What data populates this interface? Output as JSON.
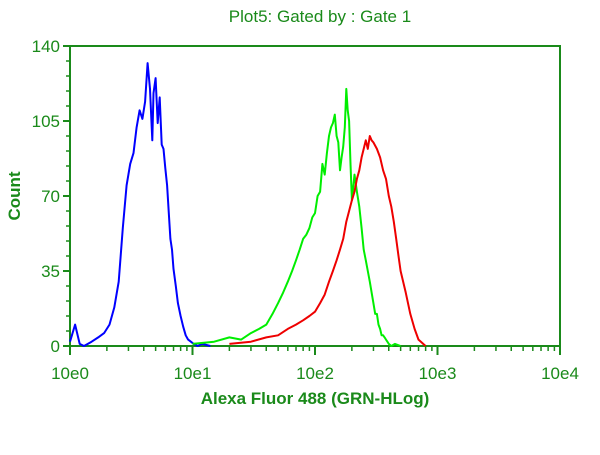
{
  "chart_data": {
    "type": "line",
    "title": "Plot5:  Gated by : Gate 1",
    "xlabel": "Alexa Fluor 488 (GRN-HLog)",
    "ylabel": "Count",
    "x_scale": "log",
    "xlim": [
      1,
      10000
    ],
    "ylim": [
      0,
      140
    ],
    "x_ticks": [
      {
        "value": 1,
        "label": "10e0"
      },
      {
        "value": 10,
        "label": "10e1"
      },
      {
        "value": 100,
        "label": "10e2"
      },
      {
        "value": 1000,
        "label": "10e3"
      },
      {
        "value": 10000,
        "label": "10e4"
      }
    ],
    "y_ticks": [
      {
        "value": 0,
        "label": "0"
      },
      {
        "value": 35,
        "label": "35"
      },
      {
        "value": 70,
        "label": "70"
      },
      {
        "value": 105,
        "label": "105"
      },
      {
        "value": 140,
        "label": "140"
      }
    ],
    "grid": false,
    "legend": "none",
    "colors": {
      "text": "#1a8a1a",
      "axis": "#1a8a1a"
    },
    "series": [
      {
        "color": "#0000ff",
        "x": [
          1.0,
          1.1,
          1.2,
          1.3,
          1.5,
          1.7,
          1.9,
          2.1,
          2.3,
          2.5,
          2.7,
          2.9,
          3.1,
          3.3,
          3.5,
          3.7,
          3.9,
          4.1,
          4.3,
          4.5,
          4.7,
          4.8,
          5.0,
          5.2,
          5.4,
          5.6,
          5.8,
          6.0,
          6.2,
          6.4,
          6.6,
          6.8,
          7.0,
          7.3,
          7.6,
          8.0,
          8.4,
          8.8,
          9.2,
          9.7,
          10.2,
          11.0,
          12.0,
          14.0
        ],
        "y": [
          2,
          10,
          1,
          0,
          2,
          4,
          6,
          10,
          18,
          30,
          55,
          75,
          85,
          90,
          102,
          110,
          106,
          114,
          132,
          120,
          96,
          118,
          125,
          104,
          116,
          94,
          92,
          83,
          75,
          62,
          50,
          45,
          36,
          28,
          20,
          14,
          9,
          5,
          3,
          2,
          1,
          0,
          1,
          0
        ]
      },
      {
        "color": "#00ee00",
        "x": [
          10,
          15,
          20,
          25,
          30,
          35,
          40,
          45,
          50,
          55,
          60,
          65,
          70,
          75,
          80,
          85,
          90,
          95,
          100,
          105,
          110,
          115,
          120,
          125,
          130,
          135,
          140,
          145,
          150,
          155,
          160,
          165,
          170,
          175,
          180,
          185,
          190,
          195,
          200,
          210,
          220,
          230,
          240,
          250,
          260,
          270,
          280,
          290,
          300,
          310,
          320,
          330,
          340,
          350,
          360,
          370,
          380,
          390,
          400,
          420,
          450,
          500
        ],
        "y": [
          1,
          2,
          4,
          3,
          6,
          8,
          10,
          15,
          20,
          25,
          30,
          35,
          40,
          45,
          50,
          52,
          55,
          60,
          62,
          70,
          72,
          85,
          80,
          90,
          98,
          102,
          104,
          108,
          98,
          95,
          82,
          88,
          93,
          102,
          120,
          110,
          105,
          85,
          68,
          80,
          72,
          65,
          55,
          45,
          40,
          35,
          30,
          25,
          20,
          15,
          15,
          10,
          8,
          5,
          5,
          4,
          3,
          2,
          1,
          0,
          1,
          0
        ]
      },
      {
        "color": "#ee0000",
        "x": [
          20,
          30,
          40,
          50,
          60,
          70,
          80,
          90,
          100,
          110,
          120,
          130,
          140,
          150,
          160,
          170,
          180,
          190,
          200,
          210,
          220,
          230,
          240,
          250,
          260,
          270,
          280,
          290,
          300,
          320,
          340,
          360,
          380,
          400,
          420,
          440,
          460,
          480,
          500,
          550,
          600,
          650,
          700,
          800
        ],
        "y": [
          1,
          2,
          4,
          5,
          8,
          10,
          12,
          14,
          16,
          20,
          24,
          30,
          35,
          40,
          45,
          50,
          58,
          63,
          68,
          72,
          78,
          82,
          88,
          92,
          96,
          92,
          98,
          96,
          95,
          92,
          88,
          82,
          78,
          70,
          65,
          58,
          50,
          42,
          35,
          25,
          15,
          8,
          3,
          0
        ]
      }
    ]
  }
}
